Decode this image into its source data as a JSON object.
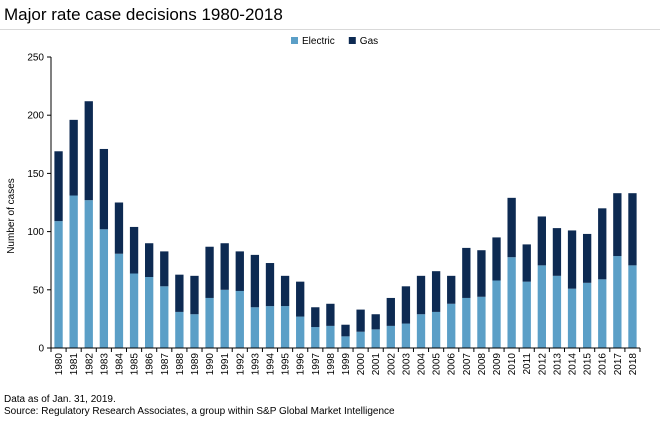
{
  "chart_data": {
    "type": "bar",
    "stacked": true,
    "title": "Major rate case decisions 1980-2018",
    "ylabel": "Number of cases",
    "xlabel": "",
    "ylim": [
      0,
      250
    ],
    "yticks": [
      0,
      50,
      100,
      150,
      200,
      250
    ],
    "grid": false,
    "legend_position": "top-center",
    "categories": [
      "1980",
      "1981",
      "1982",
      "1983",
      "1984",
      "1985",
      "1986",
      "1987",
      "1988",
      "1989",
      "1990",
      "1991",
      "1992",
      "1993",
      "1994",
      "1995",
      "1996",
      "1997",
      "1998",
      "1999",
      "2000",
      "2001",
      "2002",
      "2003",
      "2004",
      "2005",
      "2006",
      "2007",
      "2008",
      "2009",
      "2010",
      "2011",
      "2012",
      "2013",
      "2014",
      "2015",
      "2016",
      "2017",
      "2018"
    ],
    "series": [
      {
        "name": "Electric",
        "color": "#5b9fc7",
        "values": [
          109,
          131,
          127,
          102,
          81,
          64,
          61,
          53,
          31,
          29,
          43,
          50,
          49,
          35,
          36,
          36,
          27,
          18,
          19,
          10,
          14,
          16,
          19,
          21,
          29,
          31,
          38,
          43,
          44,
          58,
          78,
          57,
          71,
          62,
          51,
          56,
          59,
          79,
          71
        ]
      },
      {
        "name": "Gas",
        "color": "#0d2a52",
        "values": [
          60,
          65,
          85,
          69,
          44,
          40,
          29,
          30,
          32,
          33,
          44,
          40,
          34,
          45,
          37,
          26,
          30,
          17,
          19,
          10,
          19,
          13,
          24,
          32,
          33,
          35,
          24,
          43,
          40,
          37,
          51,
          32,
          42,
          41,
          50,
          42,
          61,
          54,
          62
        ]
      }
    ]
  },
  "footnotes": {
    "line1": "Data as of Jan. 31, 2019.",
    "line2": "Source: Regulatory Research Associates, a group within S&P Global Market Intelligence"
  }
}
